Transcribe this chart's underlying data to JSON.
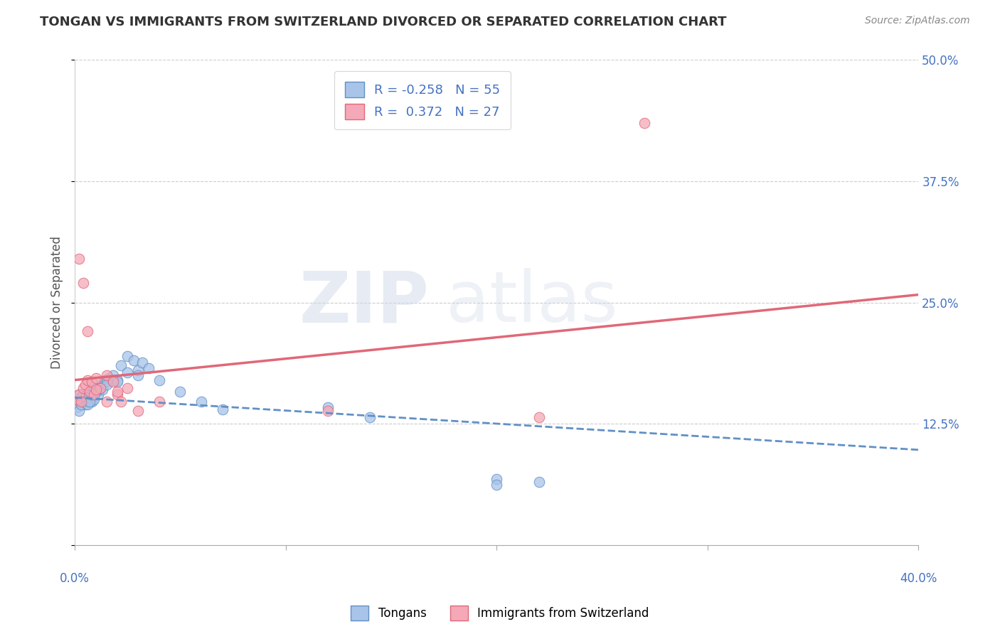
{
  "title": "TONGAN VS IMMIGRANTS FROM SWITZERLAND DIVORCED OR SEPARATED CORRELATION CHART",
  "source": "Source: ZipAtlas.com",
  "ylabel": "Divorced or Separated",
  "yticks": [
    0.0,
    0.125,
    0.25,
    0.375,
    0.5
  ],
  "ytick_labels": [
    "",
    "12.5%",
    "25.0%",
    "37.5%",
    "50.0%"
  ],
  "xlim": [
    0.0,
    0.4
  ],
  "ylim": [
    0.0,
    0.5
  ],
  "r_blue": -0.258,
  "n_blue": 55,
  "r_pink": 0.372,
  "n_pink": 27,
  "blue_color": "#a8c4e8",
  "pink_color": "#f4a8b8",
  "blue_line_color": "#6090c8",
  "pink_line_color": "#e06878",
  "watermark_zip": "ZIP",
  "watermark_atlas": "atlas",
  "legend_label_blue": "Tongans",
  "legend_label_pink": "Immigrants from Switzerland",
  "blue_line_x": [
    0.0,
    0.4
  ],
  "blue_line_y": [
    0.152,
    0.098
  ],
  "pink_line_x": [
    0.0,
    0.4
  ],
  "pink_line_y": [
    0.17,
    0.258
  ],
  "blue_scatter_x": [
    0.001,
    0.002,
    0.002,
    0.003,
    0.003,
    0.004,
    0.004,
    0.005,
    0.005,
    0.006,
    0.006,
    0.007,
    0.007,
    0.008,
    0.008,
    0.009,
    0.01,
    0.011,
    0.012,
    0.013,
    0.014,
    0.015,
    0.016,
    0.018,
    0.02,
    0.022,
    0.025,
    0.028,
    0.03,
    0.032,
    0.001,
    0.002,
    0.003,
    0.004,
    0.005,
    0.006,
    0.007,
    0.008,
    0.01,
    0.012,
    0.015,
    0.018,
    0.02,
    0.025,
    0.03,
    0.035,
    0.04,
    0.05,
    0.06,
    0.07,
    0.12,
    0.14,
    0.2,
    0.2,
    0.22
  ],
  "blue_scatter_y": [
    0.15,
    0.148,
    0.155,
    0.145,
    0.152,
    0.148,
    0.155,
    0.15,
    0.145,
    0.155,
    0.148,
    0.152,
    0.158,
    0.148,
    0.155,
    0.15,
    0.162,
    0.155,
    0.165,
    0.16,
    0.17,
    0.168,
    0.172,
    0.175,
    0.17,
    0.185,
    0.195,
    0.19,
    0.18,
    0.188,
    0.142,
    0.138,
    0.145,
    0.148,
    0.152,
    0.145,
    0.148,
    0.155,
    0.158,
    0.162,
    0.165,
    0.17,
    0.168,
    0.178,
    0.175,
    0.182,
    0.17,
    0.158,
    0.148,
    0.14,
    0.142,
    0.132,
    0.068,
    0.062,
    0.065
  ],
  "pink_scatter_x": [
    0.001,
    0.002,
    0.003,
    0.004,
    0.005,
    0.006,
    0.007,
    0.008,
    0.009,
    0.01,
    0.012,
    0.015,
    0.018,
    0.02,
    0.022,
    0.025,
    0.002,
    0.004,
    0.006,
    0.01,
    0.015,
    0.02,
    0.03,
    0.04,
    0.27,
    0.22,
    0.12
  ],
  "pink_scatter_y": [
    0.15,
    0.155,
    0.148,
    0.162,
    0.165,
    0.17,
    0.158,
    0.168,
    0.155,
    0.172,
    0.162,
    0.175,
    0.168,
    0.155,
    0.148,
    0.162,
    0.295,
    0.27,
    0.22,
    0.16,
    0.148,
    0.158,
    0.138,
    0.148,
    0.435,
    0.132,
    0.138
  ]
}
